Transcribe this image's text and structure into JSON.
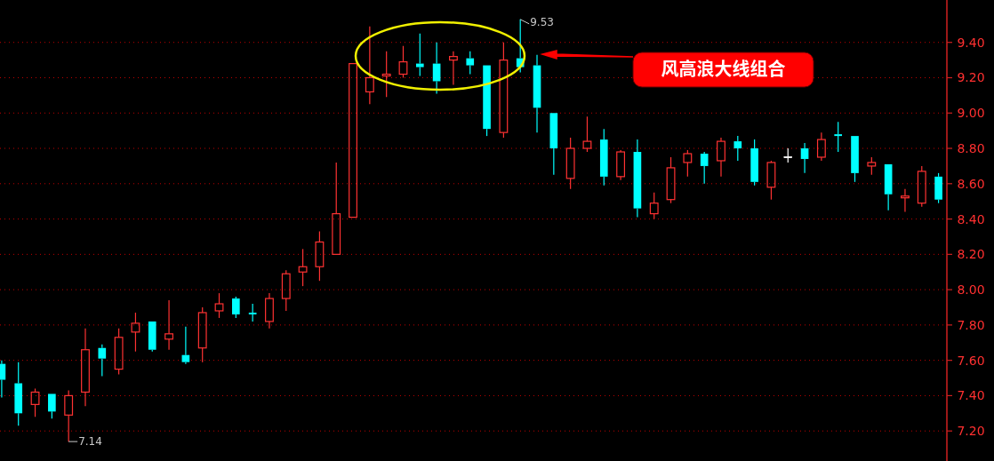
{
  "chart_data": {
    "type": "candlestick",
    "categories": [
      null,
      null,
      null,
      null,
      null,
      null,
      null,
      null,
      null,
      null,
      null,
      null,
      null,
      null,
      null,
      null,
      null,
      null,
      null,
      null,
      null,
      null,
      null,
      null,
      null,
      null,
      null,
      null,
      null,
      null,
      null,
      null,
      null,
      null,
      null,
      null,
      null,
      null,
      null,
      null,
      null,
      null,
      null,
      null,
      null,
      null,
      null,
      null,
      null,
      null,
      null,
      null,
      null,
      null,
      null,
      null,
      null
    ],
    "ohlc": [
      [
        7.58,
        7.6,
        7.39,
        7.49
      ],
      [
        7.47,
        7.59,
        7.23,
        7.3
      ],
      [
        7.35,
        7.44,
        7.28,
        7.42
      ],
      [
        7.41,
        7.41,
        7.27,
        7.31
      ],
      [
        7.29,
        7.43,
        7.14,
        7.4
      ],
      [
        7.42,
        7.78,
        7.34,
        7.66
      ],
      [
        7.67,
        7.69,
        7.51,
        7.61
      ],
      [
        7.55,
        7.78,
        7.52,
        7.73
      ],
      [
        7.76,
        7.87,
        7.65,
        7.81
      ],
      [
        7.82,
        7.82,
        7.65,
        7.66
      ],
      [
        7.72,
        7.94,
        7.66,
        7.75
      ],
      [
        7.63,
        7.79,
        7.58,
        7.59
      ],
      [
        7.67,
        7.9,
        7.59,
        7.87
      ],
      [
        7.88,
        7.98,
        7.84,
        7.92
      ],
      [
        7.95,
        7.96,
        7.84,
        7.86
      ],
      [
        7.87,
        7.92,
        7.82,
        7.86
      ],
      [
        7.82,
        7.98,
        7.78,
        7.95
      ],
      [
        7.95,
        8.11,
        7.88,
        8.09
      ],
      [
        8.1,
        8.23,
        8.02,
        8.13
      ],
      [
        8.13,
        8.33,
        8.05,
        8.27
      ],
      [
        8.2,
        8.72,
        8.2,
        8.43
      ],
      [
        8.41,
        9.28,
        8.41,
        9.28
      ],
      [
        9.12,
        9.49,
        9.05,
        9.2
      ],
      [
        9.21,
        9.35,
        9.09,
        9.22
      ],
      [
        9.22,
        9.38,
        9.2,
        9.29
      ],
      [
        9.28,
        9.45,
        9.21,
        9.26
      ],
      [
        9.28,
        9.4,
        9.11,
        9.18
      ],
      [
        9.3,
        9.35,
        9.16,
        9.32
      ],
      [
        9.31,
        9.35,
        9.22,
        9.27
      ],
      [
        9.27,
        9.27,
        8.87,
        8.91
      ],
      [
        8.89,
        9.4,
        8.86,
        9.3
      ],
      [
        9.31,
        9.53,
        9.23,
        9.26
      ],
      [
        9.27,
        9.33,
        8.89,
        9.03
      ],
      [
        9.0,
        9.0,
        8.65,
        8.8
      ],
      [
        8.63,
        8.86,
        8.57,
        8.8
      ],
      [
        8.8,
        8.98,
        8.78,
        8.84
      ],
      [
        8.85,
        8.91,
        8.59,
        8.64
      ],
      [
        8.64,
        8.79,
        8.62,
        8.78
      ],
      [
        8.78,
        8.85,
        8.41,
        8.46
      ],
      [
        8.43,
        8.55,
        8.4,
        8.49
      ],
      [
        8.51,
        8.75,
        8.49,
        8.69
      ],
      [
        8.72,
        8.79,
        8.64,
        8.77
      ],
      [
        8.77,
        8.78,
        8.6,
        8.7
      ],
      [
        8.73,
        8.86,
        8.64,
        8.84
      ],
      [
        8.84,
        8.87,
        8.73,
        8.8
      ],
      [
        8.8,
        8.85,
        8.59,
        8.61
      ],
      [
        8.58,
        8.73,
        8.51,
        8.72
      ],
      [
        8.75,
        8.8,
        8.72,
        8.75
      ],
      [
        8.8,
        8.83,
        8.66,
        8.74
      ],
      [
        8.75,
        8.89,
        8.73,
        8.85
      ],
      [
        8.88,
        8.95,
        8.78,
        8.87
      ],
      [
        8.87,
        8.87,
        8.61,
        8.66
      ],
      [
        8.7,
        8.75,
        8.65,
        8.72
      ],
      [
        8.71,
        8.71,
        8.45,
        8.54
      ],
      [
        8.52,
        8.57,
        8.44,
        8.53
      ],
      [
        8.49,
        8.7,
        8.47,
        8.67
      ],
      [
        8.64,
        8.66,
        8.49,
        8.51
      ]
    ],
    "colors": [
      "#00ffff",
      "#00ffff",
      "#ff3232",
      "#00ffff",
      "#ff3232",
      "#ff3232",
      "#00ffff",
      "#ff3232",
      "#ff3232",
      "#00ffff",
      "#ff3232",
      "#00ffff",
      "#ff3232",
      "#ff3232",
      "#00ffff",
      "#00ffff",
      "#ff3232",
      "#ff3232",
      "#ff3232",
      "#ff3232",
      "#ff3232",
      "#ff3232",
      "#ff3232",
      "#ff3232",
      "#ff3232",
      "#00ffff",
      "#00ffff",
      "#ff3232",
      "#00ffff",
      "#00ffff",
      "#ff3232",
      "#00ffff",
      "#00ffff",
      "#00ffff",
      "#ff3232",
      "#ff3232",
      "#00ffff",
      "#ff3232",
      "#00ffff",
      "#ff3232",
      "#ff3232",
      "#ff3232",
      "#00ffff",
      "#ff3232",
      "#00ffff",
      "#00ffff",
      "#ff3232",
      "#ffffff",
      "#00ffff",
      "#ff3232",
      "#00ffff",
      "#00ffff",
      "#ff3232",
      "#00ffff",
      "#ff3232",
      "#ff3232",
      "#00ffff"
    ],
    "ylim": [
      7.03,
      9.64
    ],
    "yticks": [
      {
        "value": 7.2,
        "label": "7.20"
      },
      {
        "value": 7.4,
        "label": "7.40"
      },
      {
        "value": 7.6,
        "label": "7.60"
      },
      {
        "value": 7.8,
        "label": "7.80"
      },
      {
        "value": 8.0,
        "label": "8.00"
      },
      {
        "value": 8.2,
        "label": "8.20"
      },
      {
        "value": 8.4,
        "label": "8.40"
      },
      {
        "value": 8.6,
        "label": "8.60"
      },
      {
        "value": 8.8,
        "label": "8.80"
      },
      {
        "value": 9.0,
        "label": "9.00"
      },
      {
        "value": 9.2,
        "label": "9.20"
      },
      {
        "value": 9.4,
        "label": "9.40"
      }
    ],
    "grid": "y",
    "annotations": [
      "7.14",
      "9.53",
      "风高浪大线组合"
    ]
  }
}
